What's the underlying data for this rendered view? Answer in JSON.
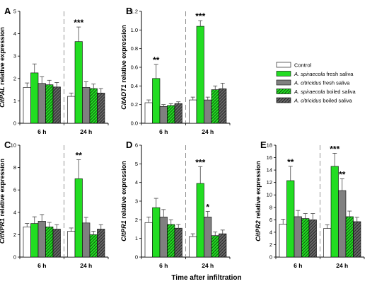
{
  "figure": {
    "x_title": "Time after infiltration"
  },
  "legend": {
    "entries": [
      {
        "style": "control",
        "parts": [
          {
            "text": "Control",
            "italic": false
          }
        ]
      },
      {
        "style": "spiraecola-fresh",
        "parts": [
          {
            "text": "A. spiraecola",
            "italic": true
          },
          {
            "text": " fresh saliva",
            "italic": false
          }
        ]
      },
      {
        "style": "citricidus-fresh",
        "parts": [
          {
            "text": "A. citricidus",
            "italic": true
          },
          {
            "text": " fresh saliva",
            "italic": false
          }
        ]
      },
      {
        "style": "spiraecola-boiled",
        "parts": [
          {
            "text": "A. spiraecola",
            "italic": true
          },
          {
            "text": " boiled saliva",
            "italic": false
          }
        ]
      },
      {
        "style": "citricidus-boiled",
        "parts": [
          {
            "text": "A. citricidus",
            "italic": true
          },
          {
            "text": " boiled saliva",
            "italic": false
          }
        ]
      }
    ]
  },
  "colors": {
    "control": "#ffffff",
    "spiraecola_fresh": "#22dd22",
    "citricidus_fresh": "#808080",
    "spiraecola_boiled": "#22dd22",
    "citricidus_boiled": "#666666",
    "hatch_line": "#000000"
  },
  "chart_data": [
    {
      "type": "bar",
      "panel": "A",
      "gene": "CitPAL",
      "ylabel_suffix": " relative expression",
      "categories": [
        "6 h",
        "24 h"
      ],
      "ylim": [
        0,
        5
      ],
      "yticks": [
        0,
        1,
        2,
        3,
        4,
        5
      ],
      "ytick_labels": [
        "0",
        "1",
        "2",
        "3",
        "4",
        "5"
      ],
      "series": [
        {
          "values": [
            1.6,
            1.2
          ],
          "errors": [
            0.2,
            0.15
          ]
        },
        {
          "values": [
            2.25,
            3.65
          ],
          "errors": [
            0.4,
            0.65
          ]
        },
        {
          "values": [
            1.78,
            1.6
          ],
          "errors": [
            0.3,
            0.25
          ]
        },
        {
          "values": [
            1.72,
            1.55
          ],
          "errors": [
            0.2,
            0.2
          ]
        },
        {
          "values": [
            1.62,
            1.35
          ],
          "errors": [
            0.2,
            0.2
          ]
        }
      ],
      "annotations": [
        {
          "category": 1,
          "series": 1,
          "text": "***"
        }
      ]
    },
    {
      "type": "bar",
      "panel": "B",
      "gene": "CitADT1",
      "ylabel_suffix": " relative expression",
      "categories": [
        "6 h",
        "24 h"
      ],
      "ylim": [
        0,
        1.2
      ],
      "yticks": [
        0,
        0.2,
        0.4,
        0.6,
        0.8,
        1.0,
        1.2
      ],
      "ytick_labels": [
        "0.0",
        "0.2",
        "0.4",
        "0.6",
        "0.8",
        "1.0",
        "1.2"
      ],
      "series": [
        {
          "values": [
            0.22,
            0.25
          ],
          "errors": [
            0.03,
            0.03
          ]
        },
        {
          "values": [
            0.48,
            1.04
          ],
          "errors": [
            0.15,
            0.06
          ]
        },
        {
          "values": [
            0.18,
            0.25
          ],
          "errors": [
            0.02,
            0.03
          ]
        },
        {
          "values": [
            0.19,
            0.36
          ],
          "errors": [
            0.02,
            0.04
          ]
        },
        {
          "values": [
            0.21,
            0.37
          ],
          "errors": [
            0.02,
            0.06
          ]
        }
      ],
      "annotations": [
        {
          "category": 0,
          "series": 1,
          "text": "**"
        },
        {
          "category": 1,
          "series": 1,
          "text": "***"
        }
      ]
    },
    {
      "type": "bar",
      "panel": "C",
      "gene": "CitNPR1",
      "ylabel_suffix": " relative expression",
      "categories": [
        "6 h",
        "24 h"
      ],
      "ylim": [
        0,
        10
      ],
      "yticks": [
        0,
        2,
        4,
        6,
        8,
        10
      ],
      "ytick_labels": [
        "0",
        "2",
        "4",
        "6",
        "8",
        "10"
      ],
      "series": [
        {
          "values": [
            2.7,
            2.3
          ],
          "errors": [
            0.3,
            0.3
          ]
        },
        {
          "values": [
            3.0,
            7.0
          ],
          "errors": [
            0.6,
            1.7
          ]
        },
        {
          "values": [
            3.2,
            3.05
          ],
          "errors": [
            0.6,
            0.5
          ]
        },
        {
          "values": [
            2.7,
            2.0
          ],
          "errors": [
            0.4,
            0.3
          ]
        },
        {
          "values": [
            2.5,
            2.5
          ],
          "errors": [
            0.4,
            0.4
          ]
        }
      ],
      "annotations": [
        {
          "category": 1,
          "series": 1,
          "text": "**"
        }
      ]
    },
    {
      "type": "bar",
      "panel": "D",
      "gene": "CitPR1",
      "ylabel_suffix": " relative expression",
      "categories": [
        "6 h",
        "24 h"
      ],
      "ylim": [
        0,
        6
      ],
      "yticks": [
        0,
        1,
        2,
        3,
        4,
        5,
        6
      ],
      "ytick_labels": [
        "0",
        "1",
        "2",
        "3",
        "4",
        "5",
        "6"
      ],
      "series": [
        {
          "values": [
            1.85,
            1.1
          ],
          "errors": [
            0.3,
            0.15
          ]
        },
        {
          "values": [
            2.65,
            3.95
          ],
          "errors": [
            0.5,
            0.9
          ]
        },
        {
          "values": [
            2.15,
            2.15
          ],
          "errors": [
            0.4,
            0.3
          ]
        },
        {
          "values": [
            1.75,
            1.15
          ],
          "errors": [
            0.25,
            0.2
          ]
        },
        {
          "values": [
            1.55,
            1.25
          ],
          "errors": [
            0.2,
            0.2
          ]
        }
      ],
      "annotations": [
        {
          "category": 1,
          "series": 1,
          "text": "***"
        },
        {
          "category": 1,
          "series": 2,
          "text": "*"
        }
      ]
    },
    {
      "type": "bar",
      "panel": "E",
      "gene": "CitPR2",
      "ylabel_suffix": " relative expression",
      "categories": [
        "6 h",
        "24 h"
      ],
      "ylim": [
        0,
        18
      ],
      "yticks": [
        0,
        2,
        4,
        6,
        8,
        10,
        12,
        14,
        16,
        18
      ],
      "ytick_labels": [
        "0",
        "2",
        "4",
        "6",
        "8",
        "10",
        "12",
        "14",
        "16",
        "18"
      ],
      "series": [
        {
          "values": [
            5.3,
            4.6
          ],
          "errors": [
            0.8,
            0.6
          ]
        },
        {
          "values": [
            12.3,
            14.6
          ],
          "errors": [
            2.3,
            2.1
          ]
        },
        {
          "values": [
            6.5,
            10.7
          ],
          "errors": [
            1.0,
            1.9
          ]
        },
        {
          "values": [
            6.2,
            6.5
          ],
          "errors": [
            0.8,
            0.9
          ]
        },
        {
          "values": [
            6.0,
            5.7
          ],
          "errors": [
            1.0,
            0.7
          ]
        }
      ],
      "annotations": [
        {
          "category": 0,
          "series": 1,
          "text": "**"
        },
        {
          "category": 1,
          "series": 1,
          "text": "***"
        },
        {
          "category": 1,
          "series": 2,
          "text": "**"
        }
      ]
    }
  ]
}
